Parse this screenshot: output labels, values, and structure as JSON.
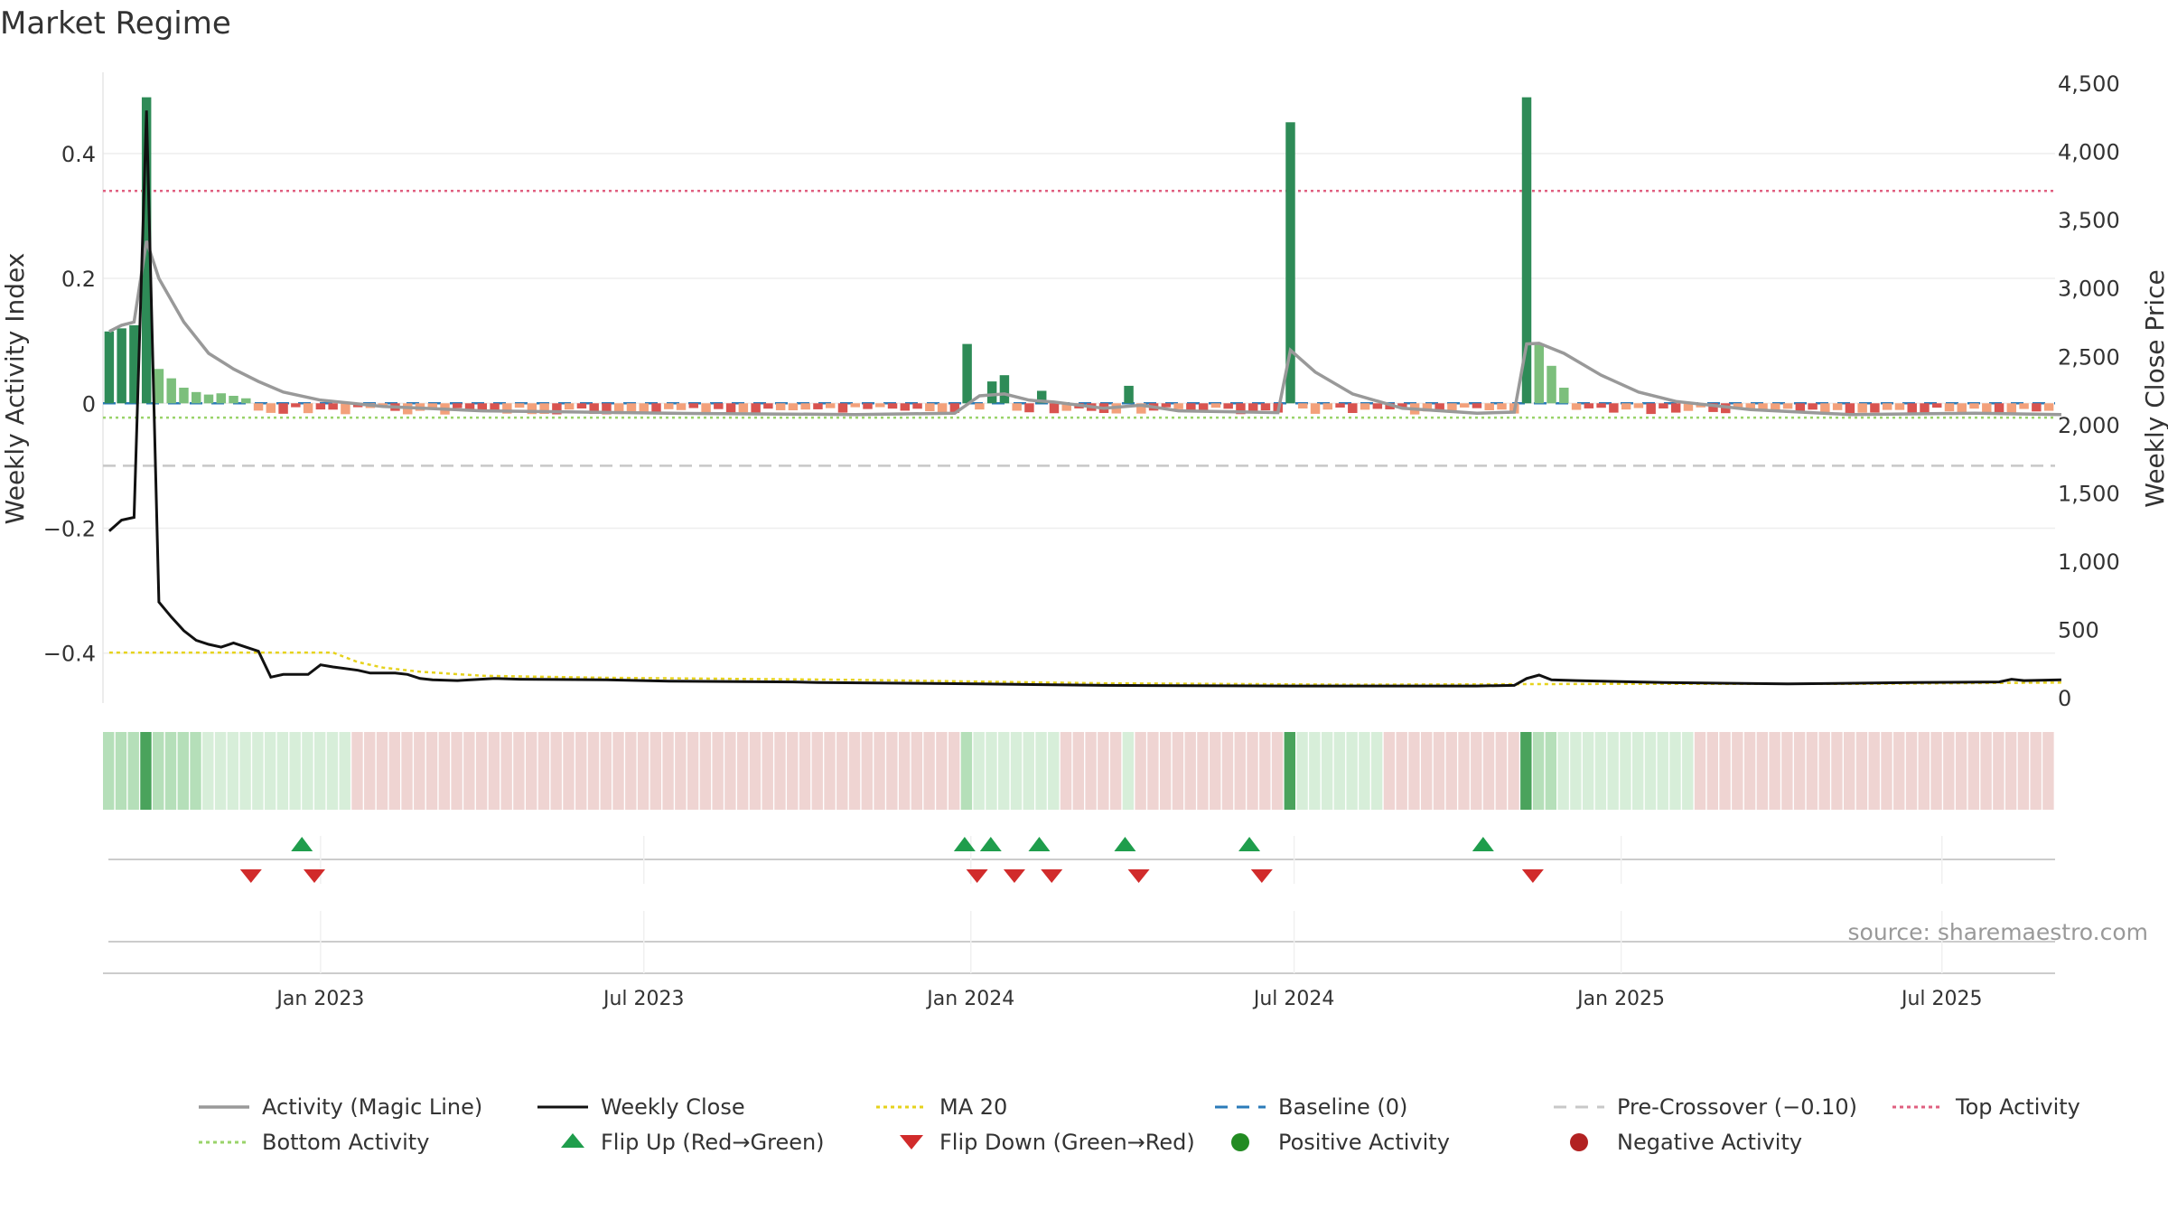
{
  "chart_data": {
    "type": "bar",
    "title": "Market Regime",
    "ylabel": "Weekly Activity Index",
    "y2label": "Weekly Close Price",
    "source": "source: sharemaestro.com",
    "ylim": [
      -0.48,
      0.53
    ],
    "y2lim": [
      -40,
      4580
    ],
    "yticks": [
      -0.4,
      -0.2,
      0,
      0.2,
      0.4
    ],
    "ytick_labels": [
      "−0.4",
      "−0.2",
      "0",
      "0.2",
      "0.4"
    ],
    "y2ticks": [
      0,
      500,
      1000,
      1500,
      2000,
      2500,
      3000,
      3500,
      4000,
      4500
    ],
    "y2tick_labels": [
      "0",
      "500",
      "1,000",
      "1,500",
      "2,000",
      "2,500",
      "3,000",
      "3,500",
      "4,000",
      "4,500"
    ],
    "x_start": "2022-09-05",
    "weeks": 157,
    "xticks": [
      {
        "label": "Jan 2023",
        "week": 17
      },
      {
        "label": "Jul 2023",
        "week": 43
      },
      {
        "label": "Jan 2024",
        "week": 69.3
      },
      {
        "label": "Jul 2024",
        "week": 95.3
      },
      {
        "label": "Jan 2025",
        "week": 121.6
      },
      {
        "label": "Jul 2025",
        "week": 147.4
      }
    ],
    "reference_lines": {
      "top_activity": 0.34,
      "bottom_activity": -0.023,
      "baseline": 0,
      "pre_crossover": -0.1
    },
    "activity_spikes": [
      [
        0,
        0.115
      ],
      [
        1,
        0.12
      ],
      [
        2,
        0.125
      ],
      [
        3,
        0.49
      ],
      [
        4,
        0.055
      ],
      [
        5,
        0.04
      ],
      [
        6,
        0.025
      ],
      [
        7,
        0.018
      ],
      [
        8,
        0.014
      ],
      [
        9,
        0.016
      ],
      [
        10,
        0.012
      ],
      [
        11,
        0.008
      ],
      [
        69,
        0.095
      ],
      [
        71,
        0.035
      ],
      [
        72,
        0.045
      ],
      [
        75,
        0.02
      ],
      [
        82,
        0.028
      ],
      [
        95,
        0.45
      ],
      [
        114,
        0.49
      ],
      [
        115,
        0.095
      ],
      [
        116,
        0.06
      ],
      [
        117,
        0.025
      ]
    ],
    "strong_positive_weeks": [
      0,
      1,
      2,
      3,
      69,
      71,
      72,
      75,
      82,
      95,
      114
    ],
    "magic_line": [
      [
        0,
        0.115
      ],
      [
        1,
        0.125
      ],
      [
        2,
        0.13
      ],
      [
        3,
        0.26
      ],
      [
        4,
        0.2
      ],
      [
        6,
        0.13
      ],
      [
        8,
        0.08
      ],
      [
        10,
        0.055
      ],
      [
        12,
        0.035
      ],
      [
        14,
        0.018
      ],
      [
        17,
        0.005
      ],
      [
        22,
        -0.005
      ],
      [
        30,
        -0.012
      ],
      [
        45,
        -0.016
      ],
      [
        60,
        -0.018
      ],
      [
        68,
        -0.016
      ],
      [
        70,
        0.012
      ],
      [
        72,
        0.015
      ],
      [
        74,
        0.005
      ],
      [
        76,
        0.002
      ],
      [
        80,
        -0.008
      ],
      [
        83,
        -0.003
      ],
      [
        86,
        -0.012
      ],
      [
        94,
        -0.015
      ],
      [
        95,
        0.085
      ],
      [
        97,
        0.05
      ],
      [
        100,
        0.015
      ],
      [
        104,
        -0.008
      ],
      [
        110,
        -0.016
      ],
      [
        113,
        -0.014
      ],
      [
        114,
        0.095
      ],
      [
        115,
        0.096
      ],
      [
        117,
        0.08
      ],
      [
        120,
        0.045
      ],
      [
        123,
        0.018
      ],
      [
        126,
        0.003
      ],
      [
        132,
        -0.01
      ],
      [
        140,
        -0.018
      ],
      [
        150,
        -0.016
      ],
      [
        157,
        -0.018
      ]
    ],
    "weekly_close": [
      [
        0,
        1220
      ],
      [
        1,
        1300
      ],
      [
        2,
        1320
      ],
      [
        3,
        4300
      ],
      [
        4,
        700
      ],
      [
        5,
        590
      ],
      [
        6,
        490
      ],
      [
        7,
        420
      ],
      [
        8,
        390
      ],
      [
        9,
        370
      ],
      [
        10,
        400
      ],
      [
        11,
        370
      ],
      [
        12,
        340
      ],
      [
        13,
        150
      ],
      [
        14,
        170
      ],
      [
        16,
        170
      ],
      [
        17,
        240
      ],
      [
        18,
        225
      ],
      [
        20,
        200
      ],
      [
        21,
        180
      ],
      [
        23,
        180
      ],
      [
        24,
        170
      ],
      [
        25,
        140
      ],
      [
        26,
        130
      ],
      [
        28,
        125
      ],
      [
        31,
        140
      ],
      [
        33,
        135
      ],
      [
        40,
        130
      ],
      [
        45,
        120
      ],
      [
        55,
        115
      ],
      [
        57,
        110
      ],
      [
        65,
        105
      ],
      [
        70,
        100
      ],
      [
        80,
        90
      ],
      [
        95,
        85
      ],
      [
        110,
        85
      ],
      [
        113,
        90
      ],
      [
        114,
        140
      ],
      [
        115,
        165
      ],
      [
        116,
        130
      ],
      [
        118,
        125
      ],
      [
        125,
        110
      ],
      [
        135,
        100
      ],
      [
        145,
        110
      ],
      [
        152,
        115
      ],
      [
        153,
        135
      ],
      [
        154,
        125
      ],
      [
        157,
        130
      ]
    ],
    "ma20": [
      [
        0,
        330
      ],
      [
        18,
        330
      ],
      [
        20,
        260
      ],
      [
        22,
        220
      ],
      [
        25,
        190
      ],
      [
        30,
        160
      ],
      [
        40,
        145
      ],
      [
        60,
        130
      ],
      [
        80,
        105
      ],
      [
        100,
        95
      ],
      [
        120,
        100
      ],
      [
        140,
        100
      ],
      [
        157,
        110
      ]
    ],
    "flip_up_weeks": [
      15.5,
      68.8,
      70.9,
      74.8,
      81.7,
      91.7,
      110.5
    ],
    "flip_down_weeks": [
      11.4,
      16.5,
      69.8,
      72.8,
      75.8,
      82.8,
      92.7,
      114.5
    ],
    "legend": [
      {
        "key": "magic",
        "label": "Activity (Magic Line)"
      },
      {
        "key": "close",
        "label": "Weekly Close"
      },
      {
        "key": "ma",
        "label": "MA 20"
      },
      {
        "key": "base",
        "label": "Baseline (0)"
      },
      {
        "key": "pre",
        "label": "Pre-Crossover (−0.10)"
      },
      {
        "key": "top",
        "label": "Top Activity"
      },
      {
        "key": "bottom",
        "label": "Bottom Activity"
      },
      {
        "key": "flipup",
        "label": "Flip Up (Red→Green)"
      },
      {
        "key": "flipdown",
        "label": "Flip Down (Green→Red)"
      },
      {
        "key": "pos",
        "label": "Positive Activity"
      },
      {
        "key": "neg",
        "label": "Negative Activity"
      }
    ],
    "colors": {
      "strong_green": "#2e8b57",
      "light_green": "#7cbf7c",
      "red_bar": "#d9534f",
      "salmon_bar": "#f3a07a",
      "magic": "#999999",
      "close": "#111111",
      "ma": "#e6d21c",
      "base": "#2b7bb9",
      "pre": "#c8c8c8",
      "top": "#e06080",
      "bottom": "#9ad36a",
      "flip_up": "#1f9d4c",
      "flip_down": "#d12b2b",
      "pos_dot": "#228b22",
      "neg_dot": "#b22222",
      "band_red": "#efd4d2",
      "band_light": "#d7eed9",
      "band_mid": "#b5dfb9",
      "band_dark": "#4aa35c"
    }
  }
}
